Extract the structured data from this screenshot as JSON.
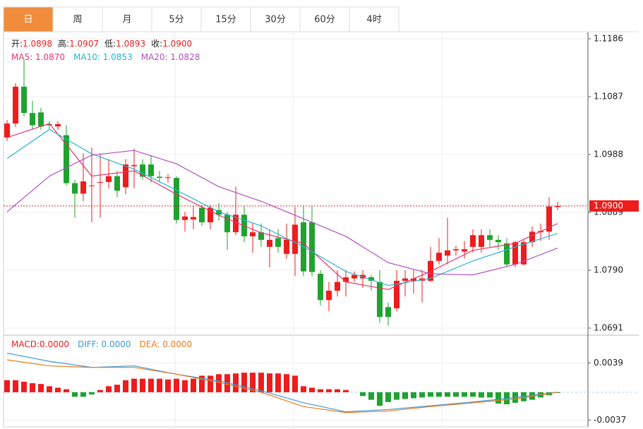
{
  "tabs": [
    {
      "label": "日",
      "active": true
    },
    {
      "label": "周"
    },
    {
      "label": "月"
    },
    {
      "label": "5分"
    },
    {
      "label": "15分"
    },
    {
      "label": "30分"
    },
    {
      "label": "60分"
    },
    {
      "label": "4时"
    }
  ],
  "info": [
    {
      "label": "开:",
      "value": "1.0898"
    },
    {
      "label": "高:",
      "value": "1.0907"
    },
    {
      "label": "低:",
      "value": "1.0893"
    },
    {
      "label": "收:",
      "value": "1.0900"
    }
  ],
  "chart_data": [
    {
      "type": "candlestick",
      "open": [
        1.1017,
        1.1041,
        1.1104,
        1.1059,
        1.106,
        1.104,
        1.1036,
        1.1021,
        1.0939,
        1.0921,
        1.0935,
        1.094,
        1.0941,
        1.0951,
        1.0932,
        1.0968,
        1.0971,
        1.0971,
        1.095,
        1.0948,
        1.0948,
        1.0876,
        1.0877,
        1.0897,
        1.0872,
        1.0893,
        1.0885,
        1.0855,
        1.0885,
        1.0848,
        1.0855,
        1.083,
        1.0845,
        1.0818,
        1.0818,
        1.0872,
        1.0872,
        1.0784,
        1.0739,
        1.0755,
        1.077,
        1.0776,
        1.0776,
        1.0778,
        1.077,
        1.0727,
        1.0725,
        1.0772,
        1.0772,
        1.0772,
        1.0772,
        1.0806,
        1.0815,
        1.0824,
        1.0822,
        1.083,
        1.083,
        1.085,
        1.0842,
        1.0836,
        1.08,
        1.08,
        1.0838,
        1.0855,
        1.0856,
        1.0898
      ],
      "high": [
        1.1047,
        1.111,
        1.115,
        1.108,
        1.1068,
        1.1045,
        1.1045,
        1.1038,
        1.0945,
        1.099,
        1.1,
        1.099,
        1.098,
        1.096,
        1.098,
        1.0998,
        1.098,
        1.0985,
        1.096,
        1.0955,
        1.0951,
        1.089,
        1.09,
        1.0902,
        1.0902,
        1.0905,
        1.089,
        1.0933,
        1.09,
        1.087,
        1.087,
        1.086,
        1.086,
        1.087,
        1.0898,
        1.09,
        1.09,
        1.079,
        1.077,
        1.079,
        1.079,
        1.0788,
        1.079,
        1.0782,
        1.079,
        1.0735,
        1.079,
        1.079,
        1.079,
        1.079,
        1.083,
        1.0845,
        1.088,
        1.0832,
        1.084,
        1.086,
        1.086,
        1.086,
        1.085,
        1.0845,
        1.084,
        1.0842,
        1.0865,
        1.087,
        1.0915,
        1.0907
      ],
      "low": [
        1.1011,
        1.1035,
        1.1053,
        1.103,
        1.103,
        1.1032,
        1.103,
        1.0935,
        1.088,
        1.0908,
        1.0872,
        1.088,
        1.093,
        1.0915,
        1.092,
        1.093,
        1.0945,
        1.094,
        1.094,
        1.094,
        1.087,
        1.0856,
        1.086,
        1.0866,
        1.086,
        1.0875,
        1.0825,
        1.085,
        1.0838,
        1.082,
        1.083,
        1.0795,
        1.082,
        1.081,
        1.078,
        1.078,
        1.078,
        1.073,
        1.072,
        1.0745,
        1.0745,
        1.077,
        1.076,
        1.0755,
        1.07,
        1.0695,
        1.072,
        1.0745,
        1.075,
        1.0735,
        1.077,
        1.08,
        1.08,
        1.0815,
        1.081,
        1.082,
        1.082,
        1.083,
        1.0825,
        1.0795,
        1.0795,
        1.0798,
        1.083,
        1.084,
        1.0842,
        1.0893
      ],
      "close": [
        1.1041,
        1.1104,
        1.1059,
        1.1038,
        1.1036,
        1.1038,
        1.104,
        1.0939,
        1.0921,
        1.0942,
        1.0935,
        1.0941,
        1.0951,
        1.0926,
        1.0971,
        1.097,
        1.095,
        1.0951,
        1.0948,
        1.0949,
        1.0876,
        1.0882,
        1.0881,
        1.0872,
        1.0897,
        1.0885,
        1.0855,
        1.0885,
        1.0848,
        1.0855,
        1.0842,
        1.0842,
        1.083,
        1.0842,
        1.0868,
        1.0788,
        1.0787,
        1.0739,
        1.0755,
        1.077,
        1.0778,
        1.0782,
        1.0782,
        1.0772,
        1.071,
        1.071,
        1.0772,
        1.0776,
        1.0776,
        1.0776,
        1.0806,
        1.082,
        1.0824,
        1.0826,
        1.0826,
        1.085,
        1.085,
        1.0842,
        1.0838,
        1.08,
        1.0838,
        1.0838,
        1.0856,
        1.0857,
        1.0899,
        1.09
      ],
      "up_color": "#ee1c1c",
      "down_color": "#1fa22e",
      "ylim": [
        1.0685,
        1.1198
      ],
      "yticks": [
        1.1186,
        1.1087,
        1.0988,
        1.0889,
        {
          "value": 1.079,
          "label": "1.0790"
        },
        1.0691
      ],
      "grid": true,
      "last_price": {
        "value": 1.09,
        "label": "1.0900"
      },
      "series": [
        {
          "name": "MA5: 1.0870",
          "color": "#e8336d",
          "x": [
            0,
            5,
            10,
            15,
            20,
            25,
            30,
            35,
            40,
            45,
            50,
            55,
            60,
            65
          ],
          "values": [
            1.1017,
            1.1041,
            1.0951,
            1.096,
            1.092,
            1.0884,
            1.0854,
            1.0836,
            1.077,
            1.0757,
            1.0788,
            1.0824,
            1.0836,
            1.087
          ]
        },
        {
          "name": "MA10: 1.0853",
          "color": "#27b3d3",
          "x": [
            0,
            5,
            10,
            15,
            20,
            25,
            30,
            35,
            40,
            45,
            50,
            55,
            60,
            65
          ],
          "values": [
            1.0981,
            1.1031,
            1.0989,
            1.0963,
            1.0927,
            1.089,
            1.0866,
            1.083,
            1.0788,
            1.0764,
            1.0776,
            1.0806,
            1.083,
            1.0853
          ]
        },
        {
          "name": "MA20: 1.0828",
          "color": "#b24fc0",
          "x": [
            0,
            5,
            10,
            15,
            20,
            25,
            30,
            35,
            40,
            45,
            50,
            55,
            60,
            65
          ],
          "values": [
            1.089,
            1.0951,
            1.0987,
            1.0995,
            1.0972,
            1.0933,
            1.0908,
            1.0878,
            1.0848,
            1.0803,
            1.0784,
            1.0782,
            1.08,
            1.0828
          ]
        }
      ]
    },
    {
      "type": "macd",
      "ylim": [
        -0.0046,
        0.0073
      ],
      "yticks": [
        0.0039,
        -0.0037
      ],
      "up_color": "#ee1c1c",
      "down_color": "#1fa22e",
      "series": [
        {
          "name": "MACD:0.0000",
          "color": "#ee1c1c",
          "values": [
            0.0016,
            0.0016,
            0.0014,
            0.0012,
            0.0011,
            0.0008,
            0.0006,
            0.0004,
            -0.0006,
            -0.0006,
            -0.0003,
            0.0003,
            0.0008,
            0.001,
            0.0016,
            0.0018,
            0.0018,
            0.0018,
            0.0018,
            0.0017,
            0.0018,
            0.0016,
            0.0018,
            0.0022,
            0.0022,
            0.0024,
            0.0024,
            0.0025,
            0.0026,
            0.0026,
            0.0026,
            0.0025,
            0.0025,
            0.0024,
            0.0022,
            0.0008,
            0.0006,
            0.0004,
            0.0004,
            0.0004,
            0.0003,
            0.0,
            -0.0005,
            -0.001,
            -0.0018,
            -0.0013,
            -0.001,
            -0.0009,
            -0.0008,
            -0.0007,
            -0.0006,
            -0.0006,
            -0.0006,
            -0.0006,
            -0.0006,
            -0.0006,
            -0.0007,
            -0.0007,
            -0.0015,
            -0.0016,
            -0.0014,
            -0.0012,
            -0.001,
            -0.0007,
            -0.0004,
            -0.0001
          ]
        },
        {
          "name": "DIFF: 0.0000",
          "color": "#3a9ad9",
          "x": [
            0,
            5,
            10,
            15,
            20,
            25,
            30,
            35,
            40,
            45,
            50,
            55,
            60,
            65
          ],
          "values": [
            0.0052,
            0.0041,
            0.0033,
            0.0035,
            0.0024,
            0.0015,
            0.0002,
            -0.0014,
            -0.0026,
            -0.0023,
            -0.0018,
            -0.0013,
            -0.0007,
            0.0
          ]
        },
        {
          "name": "DEA: 0.0000",
          "color": "#f07a1a",
          "x": [
            0,
            5,
            10,
            15,
            20,
            25,
            30,
            35,
            40,
            45,
            50,
            55,
            60,
            65
          ],
          "values": [
            0.0043,
            0.0035,
            0.0033,
            0.0033,
            0.0024,
            0.0013,
            0.0,
            -0.0019,
            -0.0027,
            -0.0025,
            -0.0019,
            -0.0014,
            -0.0009,
            0.0
          ]
        }
      ]
    }
  ]
}
